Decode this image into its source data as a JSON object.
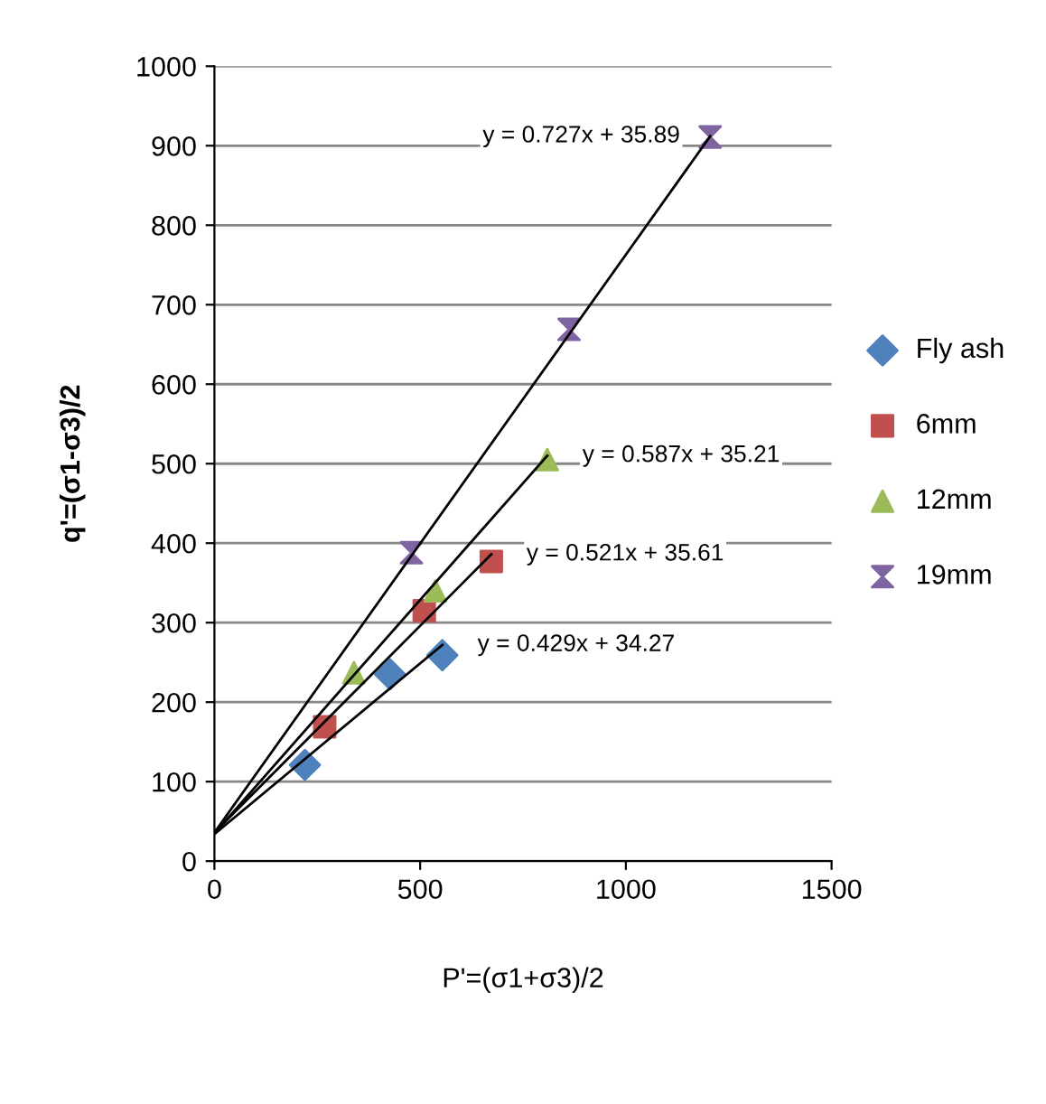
{
  "chart_data": {
    "type": "scatter",
    "xlabel": "P'=(σ1+σ3)/2",
    "ylabel": "q'=(σ1-σ3)/2",
    "xlim": [
      0,
      1500
    ],
    "xticks": [
      0,
      500,
      1000,
      1500
    ],
    "ylim": [
      0,
      1000
    ],
    "yticks": [
      0,
      100,
      200,
      300,
      400,
      500,
      600,
      700,
      800,
      900,
      1000
    ],
    "grid": "y",
    "legend": "right",
    "series": [
      {
        "name": "Fly ash",
        "color": "#4f81bd",
        "marker": "diamond",
        "x": [
          220,
          427,
          554
        ],
        "values": [
          121,
          235,
          259
        ]
      },
      {
        "name": "6mm",
        "color": "#c0504d",
        "marker": "square",
        "x": [
          268,
          510,
          673
        ],
        "values": [
          169,
          315,
          377
        ]
      },
      {
        "name": "12mm",
        "color": "#9bbb59",
        "marker": "triangle",
        "x": [
          339,
          537,
          809
        ],
        "values": [
          237,
          340,
          505
        ]
      },
      {
        "name": "19mm",
        "color": "#8064a2",
        "x": [
          479,
          862,
          1205
        ],
        "values": [
          388,
          669,
          911
        ]
      },
      {
        "type": "line",
        "color": "#000000",
        "marker": "none",
        "x": [
          0,
          554
        ],
        "values": [
          34,
          272
        ]
      },
      {
        "type": "line",
        "color": "#000000",
        "marker": "none",
        "x": [
          0,
          673
        ],
        "values": [
          36,
          386
        ]
      },
      {
        "type": "line",
        "color": "#000000",
        "marker": "none",
        "x": [
          0,
          809
        ],
        "values": [
          35,
          510
        ]
      },
      {
        "type": "line",
        "color": "#000000",
        "marker": "none",
        "x": [
          0,
          1205
        ],
        "values": [
          36,
          912
        ]
      }
    ],
    "annotations": [
      "y = 0.429x + 34.27",
      "y = 0.521x + 35.61",
      "y = 0.587x + 35.21",
      "y = 0.727x + 35.89"
    ]
  }
}
